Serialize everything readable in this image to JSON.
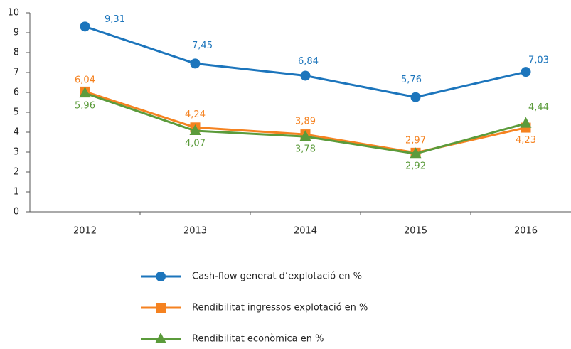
{
  "chart_data": {
    "type": "line",
    "categories": [
      "2012",
      "2013",
      "2014",
      "2015",
      "2016"
    ],
    "series": [
      {
        "name": "Cash-flow generat d’explotació en %",
        "color": "#1c75bc",
        "marker": "circle",
        "values": [
          9.31,
          7.45,
          6.84,
          5.76,
          7.03
        ],
        "value_labels": [
          "9,31",
          "7,45",
          "6,84",
          "5,76",
          "7,03"
        ]
      },
      {
        "name": "Rendibilitat ingressos explotació  en %",
        "color": "#f58220",
        "marker": "square",
        "values": [
          6.04,
          4.24,
          3.89,
          2.97,
          4.23
        ],
        "value_labels": [
          "6,04",
          "4,24",
          "3,89",
          "2,97",
          "4,23"
        ]
      },
      {
        "name": "Rendibilitat econòmica en %",
        "color": "#5b9b3b",
        "marker": "triangle",
        "values": [
          5.96,
          4.07,
          3.78,
          2.92,
          4.44
        ],
        "value_labels": [
          "5,96",
          "4,07",
          "3,78",
          "2,92",
          "4,44"
        ]
      }
    ],
    "ylim": [
      0,
      10
    ],
    "yticks": [
      0,
      1,
      2,
      3,
      4,
      5,
      6,
      7,
      8,
      9,
      10
    ],
    "grid": false,
    "legend": "bottom"
  }
}
